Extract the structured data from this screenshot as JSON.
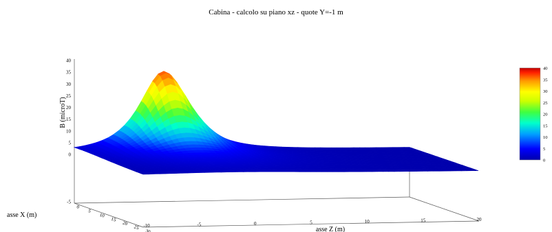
{
  "chart_data": {
    "type": "surface",
    "title": "Cabina  -  calcolo su piano xz  -  quote Y=-1 m",
    "zlabel": "B (microT)",
    "xlabel": "asse X (m)",
    "ylabel": "asse Z (m)",
    "z_ticks": [
      -5,
      0,
      5,
      10,
      15,
      20,
      25,
      30,
      35,
      40
    ],
    "x_ticks": [
      0,
      5,
      10,
      15,
      20,
      25,
      30
    ],
    "zaxis_ticks": [
      -10,
      -5,
      0,
      5,
      10,
      15,
      20
    ],
    "colorbar_ticks": [
      0,
      5,
      10,
      15,
      20,
      25,
      30,
      35,
      40
    ],
    "colormap": [
      "#0000aa",
      "#0000ff",
      "#00a0ff",
      "#00ffcc",
      "#40ff40",
      "#ccff00",
      "#ffff00",
      "#ff9900",
      "#ff2000",
      "#c00000"
    ],
    "surface": {
      "peak_value": 34,
      "peak_x": 0,
      "peak_z": -2,
      "baseline": 0,
      "x_range": [
        0,
        30
      ],
      "z_range": [
        -10,
        20
      ]
    }
  }
}
